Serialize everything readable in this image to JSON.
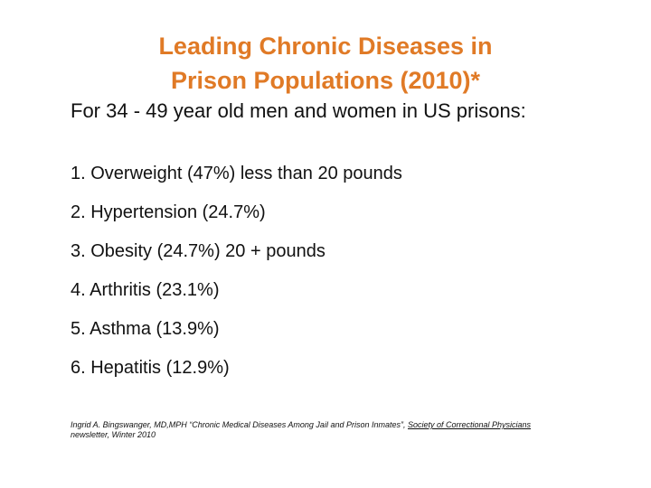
{
  "title": {
    "line1": "Leading Chronic Diseases in",
    "line2": "Prison Populations (2010)*"
  },
  "subtitle": "For 34 - 49 year old men and women in US prisons:",
  "items": [
    "1. Overweight (47%)  less than 20 pounds",
    "2. Hypertension (24.7%)",
    "3. Obesity (24.7%) 20 + pounds",
    "4. Arthritis (23.1%)",
    "5. Asthma (13.9%)",
    "6. Hepatitis (12.9%)"
  ],
  "citation": {
    "prefix": "Ingrid A. Bingswanger, MD,MPH “Chronic Medical Diseases Among Jail and Prison Inmates”, ",
    "source": "Society of Correctional Physicians",
    "suffix": " newsletter, Winter 2010"
  },
  "colors": {
    "title": "#e07a26",
    "text": "#111111",
    "background": "#ffffff"
  }
}
